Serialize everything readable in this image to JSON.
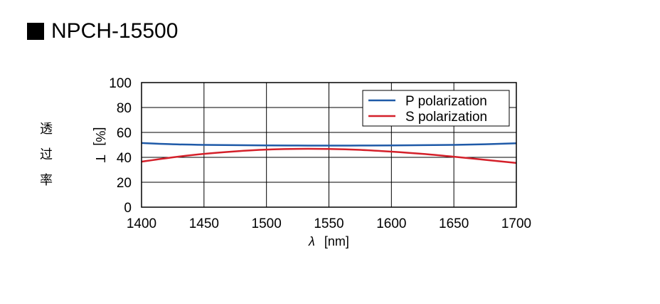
{
  "title": "NPCH-15500",
  "side_label_chars": [
    "透",
    "过",
    "率"
  ],
  "chart_data": {
    "type": "line",
    "xlabel_symbol": "λ",
    "xlabel_unit": "[nm]",
    "ylabel_symbol": "T",
    "ylabel_unit": "[%]",
    "xlim": [
      1400,
      1700
    ],
    "ylim": [
      0,
      100
    ],
    "x_ticks": [
      1400,
      1450,
      1500,
      1550,
      1600,
      1650,
      1700
    ],
    "y_ticks": [
      0,
      20,
      40,
      60,
      80,
      100
    ],
    "grid": true,
    "legend_position": "top-right",
    "series": [
      {
        "name": "P polarization",
        "color": "#1f5aa8",
        "x": [
          1400,
          1425,
          1450,
          1475,
          1500,
          1525,
          1550,
          1575,
          1600,
          1625,
          1650,
          1675,
          1700
        ],
        "y": [
          51.5,
          50.5,
          50.0,
          49.8,
          49.6,
          49.5,
          49.4,
          49.5,
          49.6,
          49.8,
          50.0,
          50.5,
          51.3
        ]
      },
      {
        "name": "S polarization",
        "color": "#d4202a",
        "x": [
          1400,
          1425,
          1450,
          1475,
          1500,
          1525,
          1550,
          1575,
          1600,
          1625,
          1650,
          1675,
          1700
        ],
        "y": [
          36.5,
          40.0,
          42.8,
          44.8,
          46.2,
          46.8,
          46.7,
          46.0,
          44.6,
          42.8,
          40.5,
          38.0,
          35.5
        ]
      }
    ]
  }
}
